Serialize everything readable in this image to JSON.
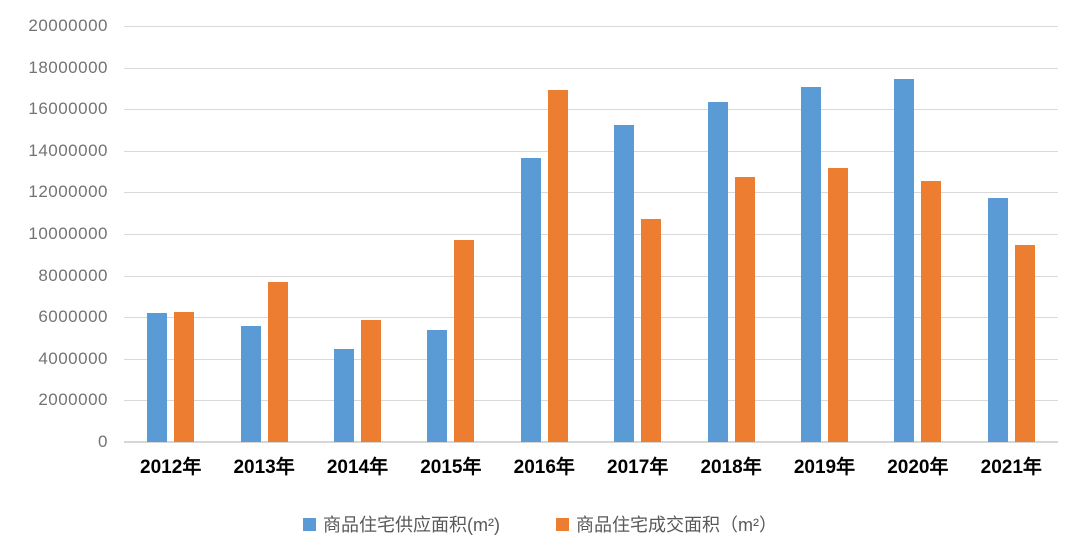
{
  "chart_data": {
    "type": "bar",
    "title": "",
    "xlabel": "",
    "ylabel": "",
    "categories": [
      "2012年",
      "2013年",
      "2014年",
      "2015年",
      "2016年",
      "2017年",
      "2018年",
      "2019年",
      "2020年",
      "2021年"
    ],
    "series": [
      {
        "name": "商品住宅供应面积(m²)",
        "color": "#5B9BD5",
        "values": [
          6200000,
          5600000,
          4450000,
          5400000,
          13650000,
          15250000,
          16350000,
          17050000,
          17450000,
          11750000
        ]
      },
      {
        "name": "商品住宅成交面积（m²）",
        "color": "#ED7D31",
        "values": [
          6250000,
          7700000,
          5850000,
          9700000,
          16900000,
          10700000,
          12750000,
          13150000,
          12550000,
          9450000
        ]
      }
    ],
    "ylim": [
      0,
      20000000
    ],
    "ytick_step": 2000000,
    "ytick_labels_top_down": [
      "20000000",
      "18000000",
      "16000000",
      "14000000",
      "12000000",
      "10000000",
      "8000000",
      "6000000",
      "4000000",
      "2000000",
      "0"
    ],
    "grid": true,
    "legend_position": "bottom",
    "colors": {
      "gridline": "#D9D9D9",
      "axis_line": "#D6D6D6",
      "y_tick_text": "#737373",
      "x_tick_text": "#000000",
      "legend_text": "#595959",
      "background": "#FFFFFF"
    }
  }
}
